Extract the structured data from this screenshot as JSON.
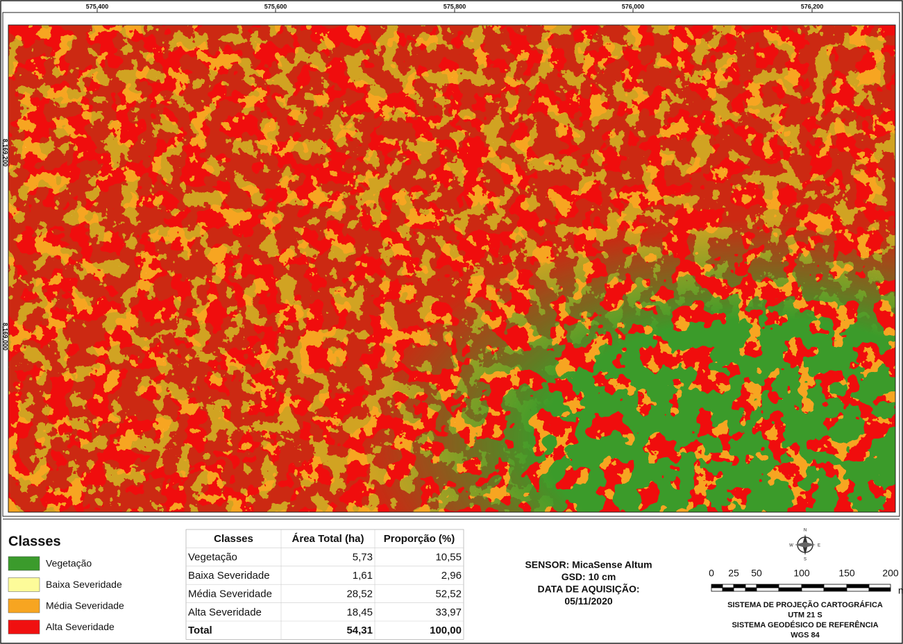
{
  "map": {
    "x_labels": [
      "575,400",
      "575,600",
      "575,800",
      "576,000",
      "576,200"
    ],
    "y_labels": [
      "8,169,200",
      "8,169,000"
    ]
  },
  "legend": {
    "title": "Classes",
    "items": [
      {
        "label": "Vegetação",
        "color": "#3b9b2c"
      },
      {
        "label": "Baixa Severidade",
        "color": "#fdfb99"
      },
      {
        "label": "Média Severidade",
        "color": "#f7a521"
      },
      {
        "label": "Alta Severidade",
        "color": "#f01010"
      }
    ]
  },
  "table": {
    "header": [
      "Classes",
      "Área Total (ha)",
      "Proporção (%)"
    ],
    "rows": [
      [
        "Vegetação",
        "5,73",
        "10,55"
      ],
      [
        "Baixa Severidade",
        "1,61",
        "2,96"
      ],
      [
        "Média Severidade",
        "28,52",
        "52,52"
      ],
      [
        "Alta Severidade",
        "18,45",
        "33,97"
      ]
    ],
    "total": [
      "Total",
      "54,31",
      "100,00"
    ]
  },
  "info": [
    "SENSOR: MicaSense Altum",
    "GSD: 10 cm",
    "DATA DE AQUISIÇÃO:",
    "05/11/2020"
  ],
  "compass": {
    "n": "N",
    "e": "E",
    "s": "S",
    "w": "W"
  },
  "scale": {
    "labels": [
      "0",
      "25",
      "50",
      "100",
      "150",
      "200"
    ],
    "unit": "m"
  },
  "projection": [
    "SISTEMA DE PROJEÇÃO CARTOGRÁFICA",
    "UTM 21 S",
    "SISTEMA GEODÉSICO DE REFERÊNCIA",
    "WGS 84"
  ]
}
